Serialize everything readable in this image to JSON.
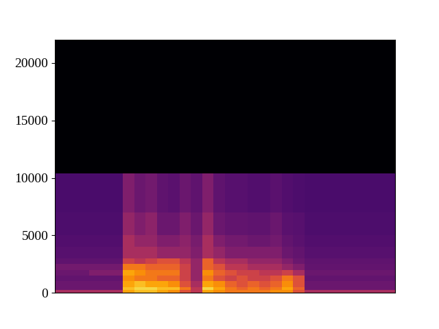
{
  "chart_data": {
    "type": "heatmap",
    "freq_edges": [
      0,
      250,
      500,
      1000,
      1500,
      2000,
      2500,
      3000,
      4000,
      5000,
      7000,
      10400,
      22050
    ],
    "cells": [
      [
        0.45,
        0.45,
        0.45,
        0.45,
        0.45,
        0.45,
        0.8,
        0.85,
        0.85,
        0.8,
        0.75,
        0.6,
        0.5,
        0.8,
        0.75,
        0.7,
        0.7,
        0.7,
        0.7,
        0.75,
        0.75,
        0.6,
        0.45,
        0.45,
        0.45,
        0.45,
        0.45,
        0.45,
        0.45,
        0.45
      ],
      [
        0.3,
        0.3,
        0.3,
        0.3,
        0.3,
        0.3,
        0.85,
        0.9,
        0.9,
        0.85,
        0.85,
        0.7,
        0.5,
        0.9,
        0.8,
        0.7,
        0.65,
        0.7,
        0.65,
        0.7,
        0.8,
        0.65,
        0.3,
        0.3,
        0.3,
        0.3,
        0.3,
        0.3,
        0.3,
        0.3
      ],
      [
        0.3,
        0.3,
        0.3,
        0.3,
        0.3,
        0.3,
        0.8,
        0.85,
        0.8,
        0.8,
        0.75,
        0.6,
        0.45,
        0.8,
        0.75,
        0.65,
        0.6,
        0.65,
        0.6,
        0.65,
        0.75,
        0.6,
        0.3,
        0.3,
        0.3,
        0.3,
        0.3,
        0.3,
        0.3,
        0.3
      ],
      [
        0.28,
        0.28,
        0.28,
        0.28,
        0.28,
        0.28,
        0.75,
        0.7,
        0.7,
        0.65,
        0.65,
        0.55,
        0.4,
        0.7,
        0.6,
        0.55,
        0.6,
        0.55,
        0.55,
        0.6,
        0.7,
        0.6,
        0.28,
        0.28,
        0.28,
        0.28,
        0.28,
        0.28,
        0.28,
        0.28
      ],
      [
        0.3,
        0.3,
        0.3,
        0.35,
        0.35,
        0.35,
        0.8,
        0.75,
        0.7,
        0.7,
        0.7,
        0.55,
        0.4,
        0.75,
        0.65,
        0.6,
        0.55,
        0.55,
        0.5,
        0.5,
        0.55,
        0.45,
        0.3,
        0.3,
        0.3,
        0.3,
        0.3,
        0.3,
        0.3,
        0.3
      ],
      [
        0.32,
        0.32,
        0.32,
        0.32,
        0.32,
        0.32,
        0.7,
        0.7,
        0.65,
        0.65,
        0.65,
        0.55,
        0.4,
        0.65,
        0.6,
        0.5,
        0.5,
        0.45,
        0.45,
        0.45,
        0.4,
        0.35,
        0.28,
        0.28,
        0.28,
        0.28,
        0.28,
        0.28,
        0.28,
        0.28
      ],
      [
        0.27,
        0.27,
        0.27,
        0.27,
        0.27,
        0.27,
        0.55,
        0.5,
        0.55,
        0.6,
        0.6,
        0.5,
        0.4,
        0.65,
        0.5,
        0.45,
        0.45,
        0.4,
        0.4,
        0.4,
        0.35,
        0.3,
        0.27,
        0.27,
        0.27,
        0.27,
        0.27,
        0.27,
        0.27,
        0.27
      ],
      [
        0.25,
        0.25,
        0.25,
        0.25,
        0.25,
        0.25,
        0.45,
        0.45,
        0.45,
        0.4,
        0.4,
        0.4,
        0.35,
        0.45,
        0.4,
        0.35,
        0.35,
        0.35,
        0.35,
        0.35,
        0.3,
        0.28,
        0.25,
        0.25,
        0.25,
        0.25,
        0.25,
        0.25,
        0.25,
        0.25
      ],
      [
        0.24,
        0.24,
        0.24,
        0.24,
        0.24,
        0.24,
        0.45,
        0.4,
        0.4,
        0.35,
        0.35,
        0.38,
        0.33,
        0.45,
        0.35,
        0.32,
        0.32,
        0.3,
        0.3,
        0.32,
        0.28,
        0.26,
        0.24,
        0.24,
        0.24,
        0.24,
        0.24,
        0.24,
        0.24,
        0.24
      ],
      [
        0.23,
        0.23,
        0.23,
        0.23,
        0.23,
        0.23,
        0.4,
        0.35,
        0.38,
        0.3,
        0.3,
        0.35,
        0.3,
        0.4,
        0.3,
        0.28,
        0.28,
        0.27,
        0.27,
        0.3,
        0.26,
        0.25,
        0.23,
        0.23,
        0.23,
        0.23,
        0.23,
        0.23,
        0.23,
        0.23
      ],
      [
        0.22,
        0.22,
        0.22,
        0.22,
        0.22,
        0.22,
        0.35,
        0.3,
        0.32,
        0.27,
        0.26,
        0.3,
        0.27,
        0.35,
        0.27,
        0.25,
        0.25,
        0.24,
        0.24,
        0.26,
        0.24,
        0.23,
        0.22,
        0.22,
        0.22,
        0.22,
        0.22,
        0.22,
        0.22,
        0.22
      ],
      [
        0.0,
        0.0,
        0.0,
        0.0,
        0.0,
        0.0,
        0.0,
        0.0,
        0.0,
        0.0,
        0.0,
        0.0,
        0.0,
        0.0,
        0.0,
        0.0,
        0.0,
        0.0,
        0.0,
        0.0,
        0.0,
        0.0,
        0.0,
        0.0,
        0.0,
        0.0,
        0.0,
        0.0,
        0.0,
        0.0
      ]
    ],
    "color": "inferno",
    "color_range": [
      0,
      1
    ],
    "ylim": [
      0,
      22050
    ],
    "yticks": [
      0,
      5000,
      10000,
      15000,
      20000
    ],
    "tick_labels": "y"
  }
}
